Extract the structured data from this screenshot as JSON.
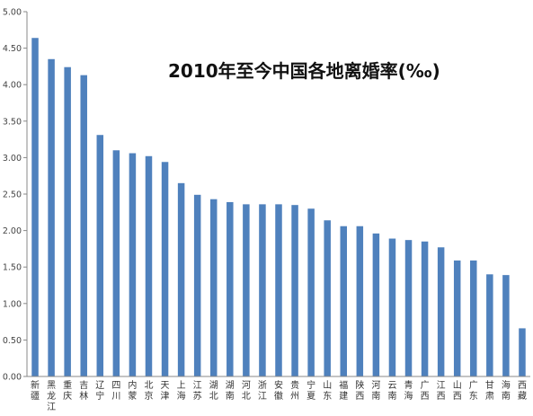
{
  "chart_data": {
    "type": "bar",
    "title": "2010年至今中国各地离婚率(‰)",
    "xlabel": "",
    "ylabel": "",
    "ylim": [
      0,
      5.0
    ],
    "yticks": [
      "0.00",
      "0.50",
      "1.00",
      "1.50",
      "2.00",
      "2.50",
      "3.00",
      "3.50",
      "4.00",
      "4.50",
      "5.00"
    ],
    "grid": false,
    "legend": "none",
    "categories": [
      "新疆",
      "黑龙江",
      "重庆",
      "吉林",
      "辽宁",
      "四川",
      "内蒙",
      "北京",
      "天津",
      "上海",
      "江苏",
      "湖北",
      "湖南",
      "河北",
      "浙江",
      "安徽",
      "贵州",
      "宁夏",
      "山东",
      "福建",
      "陕西",
      "河南",
      "云南",
      "青海",
      "广西",
      "江西",
      "山西",
      "广东",
      "甘肃",
      "海南",
      "西藏"
    ],
    "values": [
      4.64,
      4.35,
      4.24,
      4.13,
      3.31,
      3.1,
      3.06,
      3.02,
      2.94,
      2.65,
      2.49,
      2.43,
      2.39,
      2.36,
      2.36,
      2.36,
      2.35,
      2.3,
      2.14,
      2.06,
      2.06,
      1.96,
      1.89,
      1.87,
      1.85,
      1.77,
      1.59,
      1.59,
      1.4,
      1.39,
      0.66
    ],
    "colors": {
      "bar": "#4F81BD",
      "axis": "#888888"
    }
  }
}
